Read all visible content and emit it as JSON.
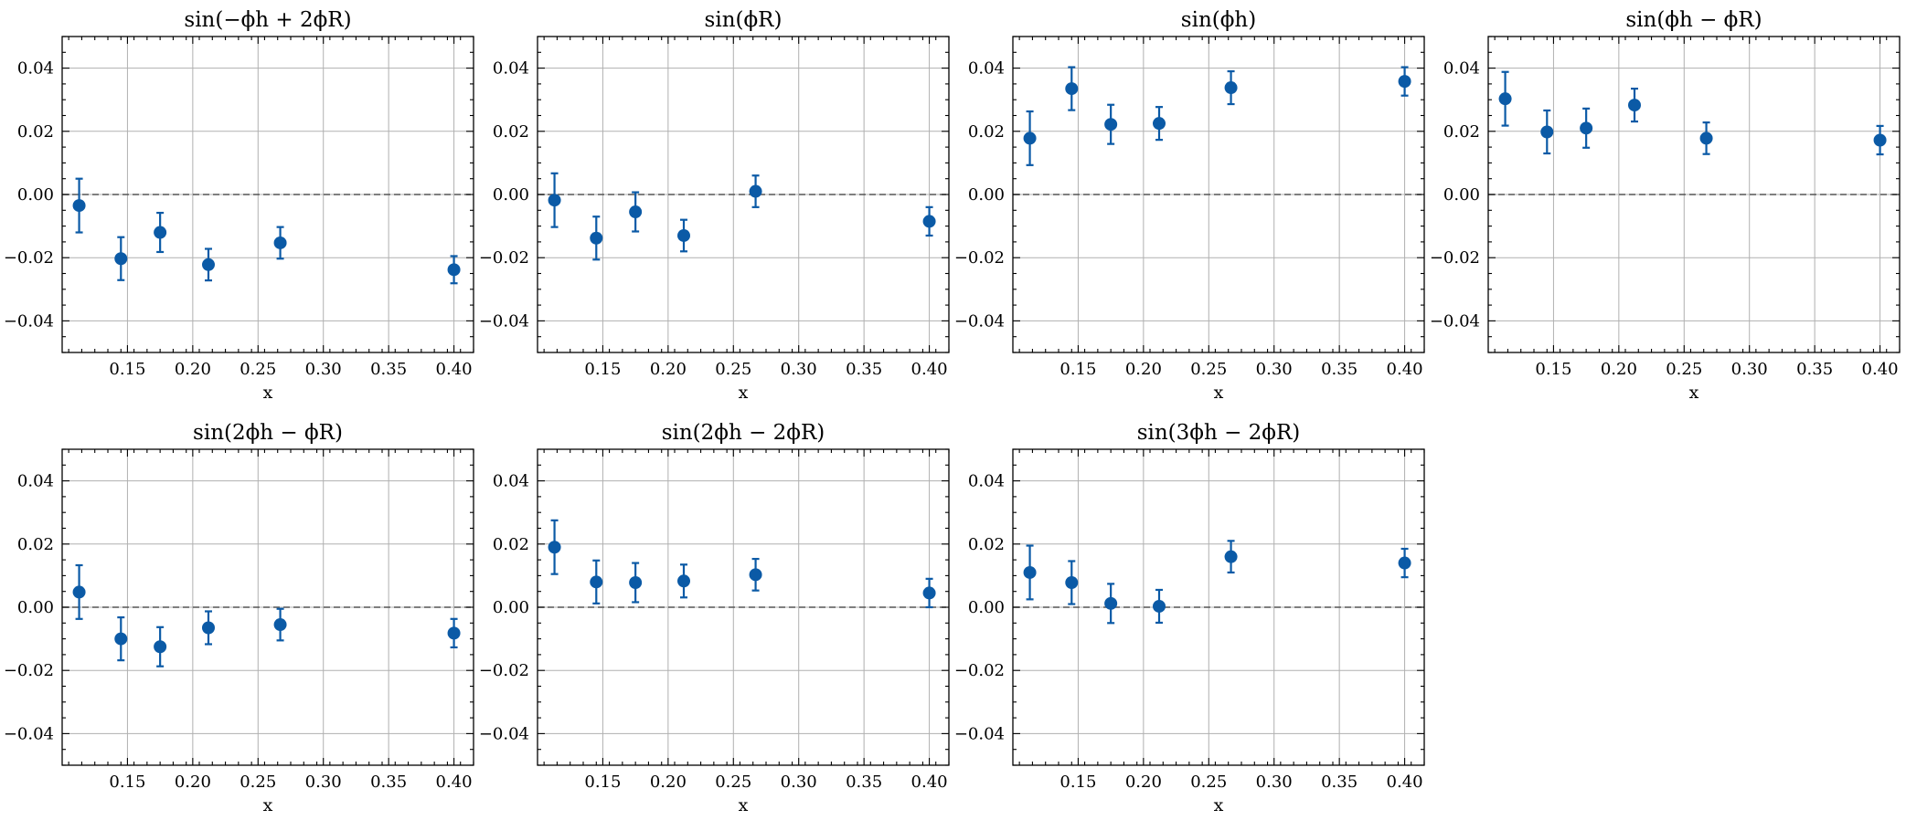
{
  "chart_data": [
    {
      "type": "scatter",
      "title": "sin(−ϕh + 2ϕR)",
      "xlabel": "x",
      "ylabel": "",
      "xlim": [
        0.1,
        0.415
      ],
      "ylim": [
        -0.05,
        0.05
      ],
      "xticks": [
        0.15,
        0.2,
        0.25,
        0.3,
        0.35,
        0.4
      ],
      "yticks": [
        -0.04,
        -0.02,
        0.0,
        0.02,
        0.04
      ],
      "grid": true,
      "reference_line": 0.0,
      "x": [
        0.113,
        0.145,
        0.175,
        0.212,
        0.267,
        0.4
      ],
      "y": [
        -0.0035,
        -0.0203,
        -0.012,
        -0.0222,
        -0.0153,
        -0.0238
      ],
      "yerr": [
        0.0085,
        0.0068,
        0.0062,
        0.005,
        0.005,
        0.0043
      ]
    },
    {
      "type": "scatter",
      "title": "sin(ϕR)",
      "xlabel": "x",
      "ylabel": "",
      "xlim": [
        0.1,
        0.415
      ],
      "ylim": [
        -0.05,
        0.05
      ],
      "xticks": [
        0.15,
        0.2,
        0.25,
        0.3,
        0.35,
        0.4
      ],
      "yticks": [
        -0.04,
        -0.02,
        0.0,
        0.02,
        0.04
      ],
      "grid": true,
      "reference_line": 0.0,
      "x": [
        0.113,
        0.145,
        0.175,
        0.212,
        0.267,
        0.4
      ],
      "y": [
        -0.0018,
        -0.0138,
        -0.0055,
        -0.013,
        0.001,
        -0.0085
      ],
      "yerr": [
        0.0085,
        0.0068,
        0.0062,
        0.005,
        0.005,
        0.0045
      ]
    },
    {
      "type": "scatter",
      "title": "sin(ϕh)",
      "xlabel": "x",
      "ylabel": "",
      "xlim": [
        0.1,
        0.415
      ],
      "ylim": [
        -0.05,
        0.05
      ],
      "xticks": [
        0.15,
        0.2,
        0.25,
        0.3,
        0.35,
        0.4
      ],
      "yticks": [
        -0.04,
        -0.02,
        0.0,
        0.02,
        0.04
      ],
      "grid": true,
      "reference_line": 0.0,
      "x": [
        0.113,
        0.145,
        0.175,
        0.212,
        0.267,
        0.4
      ],
      "y": [
        0.0178,
        0.0335,
        0.0222,
        0.0225,
        0.0338,
        0.0358
      ],
      "yerr": [
        0.0085,
        0.0068,
        0.0062,
        0.0052,
        0.0052,
        0.0045
      ]
    },
    {
      "type": "scatter",
      "title": "sin(ϕh − ϕR)",
      "xlabel": "x",
      "ylabel": "",
      "xlim": [
        0.1,
        0.415
      ],
      "ylim": [
        -0.05,
        0.05
      ],
      "xticks": [
        0.15,
        0.2,
        0.25,
        0.3,
        0.35,
        0.4
      ],
      "yticks": [
        -0.04,
        -0.02,
        0.0,
        0.02,
        0.04
      ],
      "grid": true,
      "reference_line": 0.0,
      "x": [
        0.113,
        0.145,
        0.175,
        0.212,
        0.267,
        0.4
      ],
      "y": [
        0.0303,
        0.0198,
        0.021,
        0.0283,
        0.0178,
        0.0172
      ],
      "yerr": [
        0.0085,
        0.0068,
        0.0062,
        0.0052,
        0.005,
        0.0045
      ]
    },
    {
      "type": "scatter",
      "title": "sin(2ϕh − ϕR)",
      "xlabel": "x",
      "ylabel": "",
      "xlim": [
        0.1,
        0.415
      ],
      "ylim": [
        -0.05,
        0.05
      ],
      "xticks": [
        0.15,
        0.2,
        0.25,
        0.3,
        0.35,
        0.4
      ],
      "yticks": [
        -0.04,
        -0.02,
        0.0,
        0.02,
        0.04
      ],
      "grid": true,
      "reference_line": 0.0,
      "x": [
        0.113,
        0.145,
        0.175,
        0.212,
        0.267,
        0.4
      ],
      "y": [
        0.0048,
        -0.01,
        -0.0125,
        -0.0065,
        -0.0055,
        -0.0082
      ],
      "yerr": [
        0.0085,
        0.0068,
        0.0062,
        0.0052,
        0.005,
        0.0045
      ]
    },
    {
      "type": "scatter",
      "title": "sin(2ϕh − 2ϕR)",
      "xlabel": "x",
      "ylabel": "",
      "xlim": [
        0.1,
        0.415
      ],
      "ylim": [
        -0.05,
        0.05
      ],
      "xticks": [
        0.15,
        0.2,
        0.25,
        0.3,
        0.35,
        0.4
      ],
      "yticks": [
        -0.04,
        -0.02,
        0.0,
        0.02,
        0.04
      ],
      "grid": true,
      "reference_line": 0.0,
      "x": [
        0.113,
        0.145,
        0.175,
        0.212,
        0.267,
        0.4
      ],
      "y": [
        0.019,
        0.008,
        0.0078,
        0.0083,
        0.0103,
        0.0045
      ],
      "yerr": [
        0.0085,
        0.0068,
        0.0062,
        0.0052,
        0.005,
        0.0045
      ]
    },
    {
      "type": "scatter",
      "title": "sin(3ϕh − 2ϕR)",
      "xlabel": "x",
      "ylabel": "",
      "xlim": [
        0.1,
        0.415
      ],
      "ylim": [
        -0.05,
        0.05
      ],
      "xticks": [
        0.15,
        0.2,
        0.25,
        0.3,
        0.35,
        0.4
      ],
      "yticks": [
        -0.04,
        -0.02,
        0.0,
        0.02,
        0.04
      ],
      "grid": true,
      "reference_line": 0.0,
      "x": [
        0.113,
        0.145,
        0.175,
        0.212,
        0.267,
        0.4
      ],
      "y": [
        0.011,
        0.0078,
        0.0012,
        0.0003,
        0.016,
        0.014
      ],
      "yerr": [
        0.0085,
        0.0068,
        0.0062,
        0.0052,
        0.005,
        0.0045
      ]
    }
  ],
  "colors": {
    "marker": "#0b5aa6",
    "grid": "#b0b0b0",
    "reference_line": "#555555"
  }
}
